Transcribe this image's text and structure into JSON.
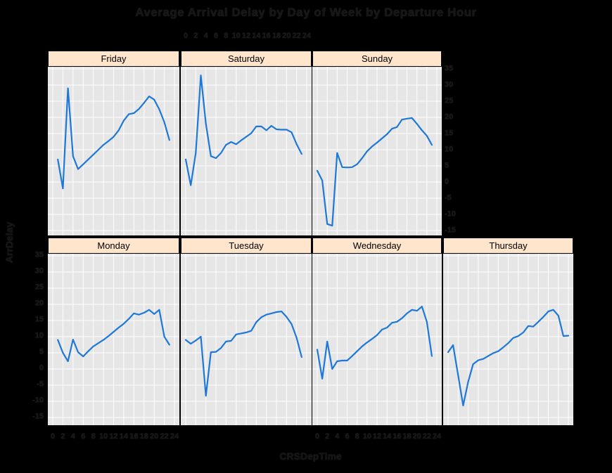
{
  "title": "Average Arrival Delay by Day of Week by Departure Hour",
  "axis": {
    "x_label": "CRSDepTime",
    "y_label": "ArrDelay"
  },
  "colors": {
    "line": "#1E78D8",
    "panel_background": "#E6E6E6",
    "gridline": "#FFFFFF",
    "strip_background": "#FFE5CC",
    "strip_text": "#000000",
    "page_background": "#000000",
    "label_text": "#161616"
  },
  "chart_data": {
    "type": "line",
    "title": "Average Arrival Delay by Day of Week by Departure Hour",
    "xlabel": "CRSDepTime",
    "ylabel": "ArrDelay",
    "x_range": [
      0,
      24
    ],
    "y_range": [
      -15,
      35
    ],
    "x_ticks": [
      0,
      2,
      4,
      6,
      8,
      10,
      12,
      14,
      16,
      18,
      20,
      22,
      24
    ],
    "y_ticks": [
      35,
      30,
      25,
      20,
      15,
      10,
      5,
      0,
      -5,
      -10,
      -15
    ],
    "grid": "on",
    "legend": "none",
    "panel_grid": [
      [
        "Friday",
        "Saturday",
        "Sunday"
      ],
      [
        "Monday",
        "Tuesday",
        "Wednesday",
        "Thursday"
      ]
    ],
    "series": [
      {
        "name": "Friday",
        "x": [
          1,
          2,
          3,
          4,
          5,
          6,
          7,
          8,
          9,
          10,
          11,
          12,
          13,
          14,
          15,
          16,
          17,
          18,
          19,
          20,
          21,
          22,
          23
        ],
        "y": [
          7,
          -2,
          29,
          8,
          4,
          5.5,
          7,
          8.5,
          10,
          11.5,
          12.7,
          14,
          16,
          19,
          21,
          21.3,
          22.6,
          24.5,
          26.5,
          25.5,
          22.5,
          18.5,
          13
        ]
      },
      {
        "name": "Saturday",
        "x": [
          0,
          1,
          2,
          3,
          4,
          5,
          6,
          7,
          8,
          9,
          10,
          11,
          12,
          13,
          14,
          15,
          16,
          17,
          18,
          19,
          20,
          21,
          22,
          23
        ],
        "y": [
          7,
          -1,
          9,
          33,
          18,
          8,
          7.4,
          9,
          11.5,
          12.4,
          11.7,
          12.9,
          14,
          15.1,
          17.2,
          17.2,
          16,
          17.4,
          16.3,
          16.2,
          16.2,
          15.4,
          11.7,
          8.7
        ]
      },
      {
        "name": "Sunday",
        "x": [
          0,
          1,
          2,
          3,
          4,
          5,
          6,
          7,
          8,
          9,
          10,
          11,
          12,
          13,
          14,
          15,
          16,
          17,
          18,
          19,
          20,
          21,
          22,
          23
        ],
        "y": [
          3.5,
          0.5,
          -13,
          -13.5,
          9,
          4.6,
          4.5,
          4.6,
          5.5,
          7.4,
          9.5,
          11,
          12.2,
          13.5,
          14.8,
          16.5,
          17,
          19.3,
          19.6,
          19.8,
          18,
          16,
          14.3,
          11.5
        ]
      },
      {
        "name": "Monday",
        "x": [
          1,
          2,
          3,
          4,
          5,
          6,
          7,
          8,
          9,
          10,
          11,
          12,
          13,
          14,
          15,
          16,
          17,
          18,
          19,
          20,
          21,
          22,
          23
        ],
        "y": [
          9,
          5,
          2.4,
          9.1,
          5.2,
          3.9,
          5.5,
          7,
          8,
          9,
          10.2,
          11.5,
          12.8,
          14,
          15.5,
          17.2,
          16.8,
          17.4,
          18.3,
          17,
          18.3,
          10,
          7.5
        ]
      },
      {
        "name": "Tuesday",
        "x": [
          0,
          1,
          2,
          3,
          4,
          5,
          6,
          7,
          8,
          9,
          10,
          11,
          12,
          13,
          14,
          15,
          16,
          17,
          18,
          19,
          20,
          21,
          22,
          23
        ],
        "y": [
          9,
          7.8,
          8.8,
          10,
          -8.3,
          5.2,
          5.3,
          6.5,
          8.5,
          8.7,
          10.7,
          11,
          11.3,
          11.8,
          14.5,
          16,
          16.8,
          17.2,
          17.6,
          17.8,
          16.1,
          13.9,
          9.6,
          3.7
        ]
      },
      {
        "name": "Wednesday",
        "x": [
          0,
          1,
          2,
          3,
          4,
          5,
          6,
          7,
          8,
          9,
          10,
          11,
          12,
          13,
          14,
          15,
          16,
          17,
          18,
          19,
          20,
          21,
          22,
          23
        ],
        "y": [
          6,
          -3,
          8.5,
          0,
          2.4,
          2.6,
          2.6,
          4,
          5.5,
          7,
          8.2,
          9.3,
          10.5,
          12.2,
          12.8,
          14.3,
          14.6,
          15.7,
          17.2,
          18.3,
          18,
          19.3,
          14.6,
          4
        ]
      },
      {
        "name": "Thursday",
        "x": [
          0,
          1,
          2,
          3,
          4,
          5,
          6,
          7,
          8,
          9,
          10,
          11,
          12,
          13,
          14,
          15,
          16,
          17,
          18,
          19,
          20,
          21,
          22,
          23,
          24
        ],
        "y": [
          5.2,
          7.4,
          -2,
          -11.3,
          -4,
          1.5,
          2.7,
          3.1,
          4,
          4.9,
          5.5,
          6.7,
          8,
          9.6,
          10.2,
          11.3,
          13.3,
          13.1,
          14.6,
          16.1,
          17.8,
          18.3,
          16.5,
          10.2,
          10.3
        ]
      }
    ]
  }
}
